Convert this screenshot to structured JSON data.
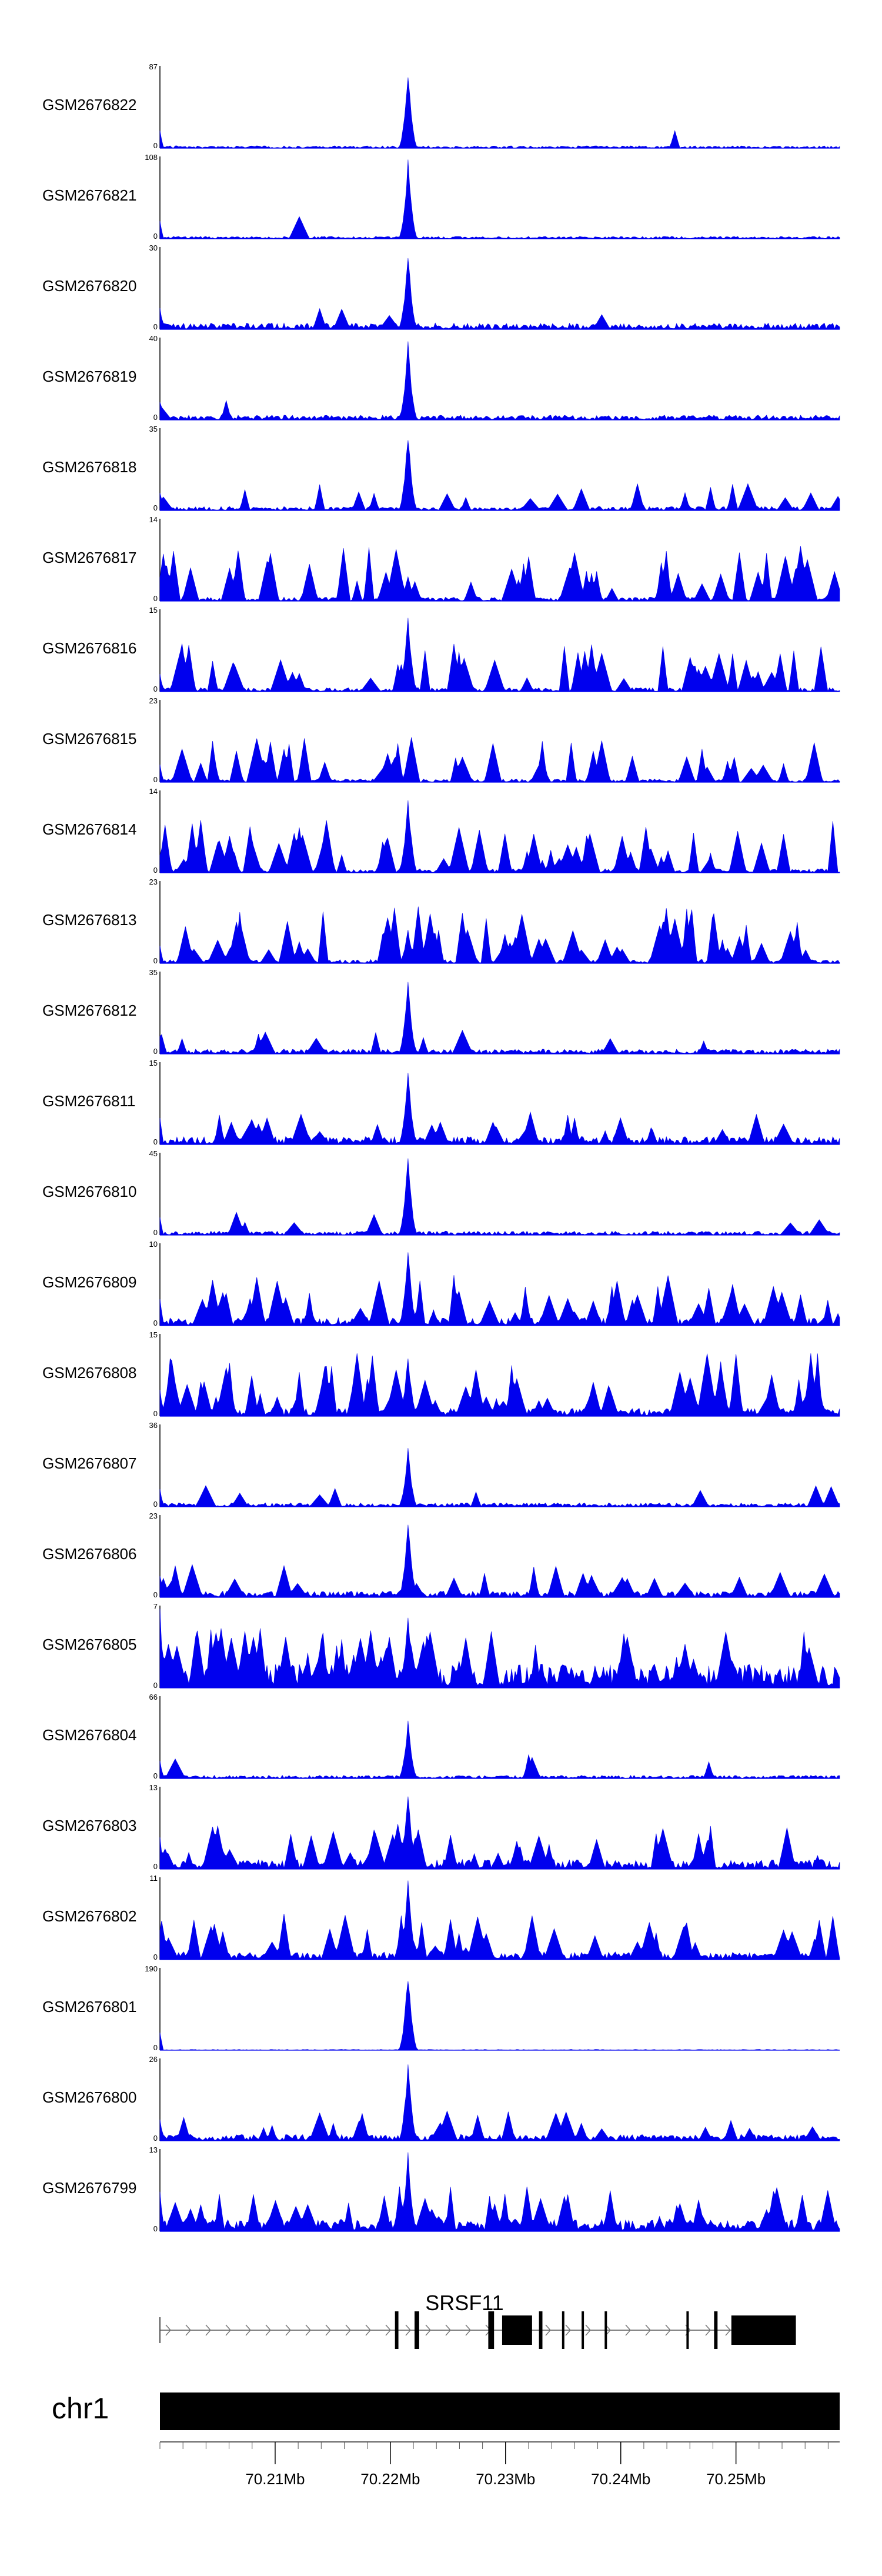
{
  "chart_data": {
    "type": "area",
    "title": "",
    "series_color": "#0000ee",
    "x_range_mb": [
      70.2,
      70.259
    ],
    "peak_center_mb": 70.2215,
    "tracks": [
      {
        "name": "GSM2676822",
        "ymax": "87",
        "ymin": "0",
        "peak": 1.0,
        "noise": 0.03,
        "spiky": 0.02
      },
      {
        "name": "GSM2676821",
        "ymax": "108",
        "ymin": "0",
        "peak": 1.0,
        "noise": 0.03,
        "spiky": 0.02
      },
      {
        "name": "GSM2676820",
        "ymax": "30",
        "ymin": "0",
        "peak": 1.0,
        "noise": 0.08,
        "spiky": 0.05
      },
      {
        "name": "GSM2676819",
        "ymax": "40",
        "ymin": "0",
        "peak": 1.0,
        "noise": 0.06,
        "spiky": 0.03
      },
      {
        "name": "GSM2676818",
        "ymax": "35",
        "ymin": "0",
        "peak": 1.0,
        "noise": 0.05,
        "spiky": 0.25
      },
      {
        "name": "GSM2676817",
        "ymax": "14",
        "ymin": "0",
        "peak": 0.35,
        "noise": 0.05,
        "spiky": 0.75
      },
      {
        "name": "GSM2676816",
        "ymax": "15",
        "ymin": "0",
        "peak": 0.95,
        "noise": 0.05,
        "spiky": 0.6
      },
      {
        "name": "GSM2676815",
        "ymax": "23",
        "ymin": "0",
        "peak": 0.1,
        "noise": 0.04,
        "spiky": 0.55
      },
      {
        "name": "GSM2676814",
        "ymax": "14",
        "ymin": "0",
        "peak": 1.0,
        "noise": 0.05,
        "spiky": 0.7
      },
      {
        "name": "GSM2676813",
        "ymax": "23",
        "ymin": "0",
        "peak": 0.45,
        "noise": 0.05,
        "spiky": 0.75
      },
      {
        "name": "GSM2676812",
        "ymax": "35",
        "ymin": "0",
        "peak": 0.95,
        "noise": 0.06,
        "spiky": 0.15
      },
      {
        "name": "GSM2676811",
        "ymax": "15",
        "ymin": "0",
        "peak": 0.95,
        "noise": 0.1,
        "spiky": 0.35
      },
      {
        "name": "GSM2676810",
        "ymax": "45",
        "ymin": "0",
        "peak": 1.0,
        "noise": 0.05,
        "spiky": 0.08
      },
      {
        "name": "GSM2676809",
        "ymax": "10",
        "ymin": "0",
        "peak": 1.0,
        "noise": 0.1,
        "spiky": 0.65
      },
      {
        "name": "GSM2676808",
        "ymax": "15",
        "ymin": "0",
        "peak": 0.8,
        "noise": 0.1,
        "spiky": 0.85
      },
      {
        "name": "GSM2676807",
        "ymax": "36",
        "ymin": "0",
        "peak": 0.75,
        "noise": 0.05,
        "spiky": 0.12
      },
      {
        "name": "GSM2676806",
        "ymax": "23",
        "ymin": "0",
        "peak": 1.0,
        "noise": 0.08,
        "spiky": 0.35
      },
      {
        "name": "GSM2676805",
        "ymax": "7",
        "ymin": "0",
        "peak": 1.0,
        "noise": 0.3,
        "spiky": 0.8
      },
      {
        "name": "GSM2676804",
        "ymax": "66",
        "ymin": "0",
        "peak": 0.75,
        "noise": 0.04,
        "spiky": 0.05
      },
      {
        "name": "GSM2676803",
        "ymax": "13",
        "ymin": "0",
        "peak": 1.0,
        "noise": 0.12,
        "spiky": 0.55
      },
      {
        "name": "GSM2676802",
        "ymax": "11",
        "ymin": "0",
        "peak": 1.0,
        "noise": 0.1,
        "spiky": 0.6
      },
      {
        "name": "GSM2676801",
        "ymax": "190",
        "ymin": "0",
        "peak": 1.0,
        "noise": 0.01,
        "spiky": 0.0
      },
      {
        "name": "GSM2676800",
        "ymax": "26",
        "ymin": "0",
        "peak": 1.0,
        "noise": 0.08,
        "spiky": 0.3
      },
      {
        "name": "GSM2676799",
        "ymax": "13",
        "ymin": "0",
        "peak": 1.0,
        "noise": 0.15,
        "spiky": 0.55
      }
    ],
    "gene": {
      "name": "SRSF11",
      "strand": "+",
      "start_mb": 70.2,
      "end_mb": 70.2525,
      "exons_mb": [
        [
          70.2204,
          70.2207
        ],
        [
          70.2221,
          70.2225
        ],
        [
          70.2285,
          70.229
        ],
        [
          70.2297,
          70.2323
        ],
        [
          70.2329,
          70.2332
        ],
        [
          70.2349,
          70.2351
        ],
        [
          70.2366,
          70.2368
        ],
        [
          70.2386,
          70.2388
        ],
        [
          70.2457,
          70.2459
        ],
        [
          70.2481,
          70.2484
        ],
        [
          70.2496,
          70.2522
        ],
        [
          70.2505,
          70.253
        ],
        [
          70.2525,
          70.2552
        ]
      ]
    },
    "ideogram": {
      "chromosome": "chr1"
    },
    "x_axis": {
      "ticks": [
        {
          "value": 70.21,
          "label": "70.21Mb"
        },
        {
          "value": 70.22,
          "label": "70.22Mb"
        },
        {
          "value": 70.23,
          "label": "70.23Mb"
        },
        {
          "value": 70.24,
          "label": "70.24Mb"
        },
        {
          "value": 70.25,
          "label": "70.25Mb"
        }
      ],
      "minor_step_mb": 0.002
    }
  }
}
